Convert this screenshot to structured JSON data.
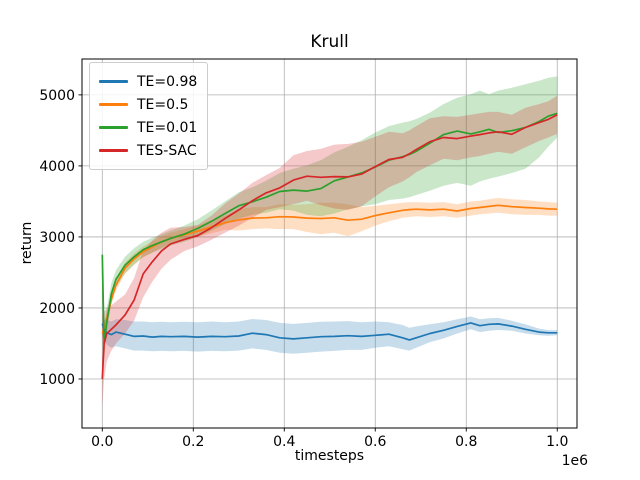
{
  "chart_data": {
    "type": "line",
    "title": "Krull",
    "xlabel": "timesteps",
    "ylabel": "return",
    "x_offset_label": "1e6",
    "x_units": "1e6 timesteps",
    "grid": true,
    "legend_position": "upper-left",
    "xlim": [
      -0.0446,
      1.0434
    ],
    "ylim": [
      310,
      5505
    ],
    "x_ticks": [
      0.0,
      0.2,
      0.4,
      0.6,
      0.8,
      1.0
    ],
    "y_ticks": [
      1000,
      2000,
      3000,
      4000,
      5000
    ],
    "frame_color": "#000000",
    "grid_color": "#b0b0b0",
    "band_alpha": 0.25,
    "x": [
      0,
      0.004,
      0.01,
      0.02,
      0.03,
      0.05,
      0.07,
      0.09,
      0.11,
      0.13,
      0.15,
      0.18,
      0.21,
      0.24,
      0.27,
      0.3,
      0.33,
      0.36,
      0.39,
      0.42,
      0.45,
      0.48,
      0.51,
      0.54,
      0.57,
      0.6,
      0.63,
      0.66,
      0.675,
      0.69,
      0.72,
      0.75,
      0.78,
      0.81,
      0.83,
      0.85,
      0.87,
      0.9,
      0.93,
      0.96,
      0.98,
      1.0
    ],
    "series": [
      {
        "name": "TE=0.98",
        "color": "#1f77b4",
        "values": [
          1780,
          1700,
          1650,
          1625,
          1660,
          1630,
          1600,
          1605,
          1590,
          1600,
          1595,
          1600,
          1590,
          1600,
          1595,
          1605,
          1645,
          1625,
          1580,
          1565,
          1580,
          1595,
          1600,
          1610,
          1600,
          1615,
          1630,
          1580,
          1550,
          1580,
          1640,
          1685,
          1740,
          1790,
          1750,
          1770,
          1775,
          1745,
          1700,
          1660,
          1650,
          1650
        ],
        "band_low": [
          1600,
          1560,
          1480,
          1440,
          1460,
          1430,
          1400,
          1400,
          1390,
          1395,
          1390,
          1395,
          1385,
          1395,
          1390,
          1400,
          1430,
          1410,
          1370,
          1355,
          1370,
          1385,
          1395,
          1410,
          1410,
          1440,
          1460,
          1420,
          1400,
          1440,
          1520,
          1570,
          1640,
          1700,
          1660,
          1680,
          1690,
          1680,
          1640,
          1615,
          1610,
          1615
        ],
        "band_high": [
          1900,
          1840,
          1830,
          1810,
          1840,
          1830,
          1810,
          1810,
          1800,
          1805,
          1800,
          1805,
          1800,
          1810,
          1800,
          1810,
          1845,
          1830,
          1790,
          1775,
          1790,
          1805,
          1810,
          1815,
          1800,
          1810,
          1800,
          1760,
          1720,
          1740,
          1770,
          1800,
          1840,
          1880,
          1840,
          1855,
          1860,
          1820,
          1770,
          1710,
          1690,
          1685
        ]
      },
      {
        "name": "TE=0.5",
        "color": "#ff7f0e",
        "values": [
          1640,
          1720,
          1850,
          2120,
          2320,
          2560,
          2690,
          2790,
          2860,
          2930,
          2980,
          3030,
          3080,
          3140,
          3200,
          3240,
          3265,
          3270,
          3285,
          3280,
          3265,
          3260,
          3270,
          3235,
          3250,
          3300,
          3340,
          3375,
          3385,
          3390,
          3380,
          3390,
          3365,
          3400,
          3415,
          3430,
          3445,
          3425,
          3415,
          3405,
          3395,
          3390
        ],
        "band_low": [
          1560,
          1650,
          1780,
          2050,
          2250,
          2480,
          2610,
          2710,
          2780,
          2850,
          2900,
          2950,
          3000,
          3050,
          3100,
          3090,
          3110,
          3120,
          3110,
          3110,
          3070,
          3040,
          3060,
          3010,
          3080,
          3160,
          3220,
          3270,
          3280,
          3290,
          3280,
          3290,
          3270,
          3300,
          3320,
          3330,
          3340,
          3320,
          3310,
          3310,
          3300,
          3300
        ],
        "band_high": [
          1720,
          1800,
          1930,
          2200,
          2400,
          2640,
          2770,
          2870,
          2940,
          3010,
          3060,
          3110,
          3160,
          3230,
          3300,
          3390,
          3420,
          3420,
          3460,
          3450,
          3460,
          3480,
          3480,
          3460,
          3420,
          3440,
          3460,
          3480,
          3490,
          3490,
          3480,
          3490,
          3460,
          3500,
          3510,
          3530,
          3550,
          3530,
          3520,
          3500,
          3490,
          3480
        ]
      },
      {
        "name": "TE=0.01",
        "color": "#2ca02c",
        "values": [
          2750,
          1500,
          1800,
          2200,
          2400,
          2600,
          2720,
          2820,
          2880,
          2930,
          2980,
          3040,
          3120,
          3220,
          3330,
          3440,
          3495,
          3560,
          3640,
          3660,
          3645,
          3680,
          3790,
          3845,
          3900,
          3985,
          4080,
          4130,
          4160,
          4205,
          4320,
          4440,
          4490,
          4450,
          4480,
          4515,
          4470,
          4495,
          4540,
          4625,
          4700,
          4740
        ],
        "band_low": [
          1450,
          1300,
          1650,
          2080,
          2290,
          2490,
          2610,
          2720,
          2780,
          2830,
          2880,
          2930,
          3000,
          3090,
          3180,
          3260,
          3310,
          3340,
          3390,
          3370,
          3310,
          3290,
          3330,
          3390,
          3430,
          3460,
          3520,
          3540,
          3560,
          3590,
          3650,
          3720,
          3760,
          3720,
          3780,
          3820,
          3850,
          3900,
          3960,
          4120,
          4270,
          4400
        ],
        "band_high": [
          2900,
          1750,
          2000,
          2350,
          2530,
          2720,
          2840,
          2930,
          2990,
          3040,
          3090,
          3160,
          3250,
          3370,
          3500,
          3630,
          3700,
          3790,
          3900,
          3960,
          4010,
          4080,
          4190,
          4270,
          4360,
          4470,
          4560,
          4610,
          4630,
          4660,
          4750,
          4870,
          4960,
          5010,
          5060,
          5010,
          5060,
          5100,
          5150,
          5200,
          5240,
          5260
        ]
      },
      {
        "name": "TES-SAC",
        "color": "#d62728",
        "values": [
          1000,
          1500,
          1640,
          1700,
          1760,
          1900,
          2110,
          2480,
          2650,
          2800,
          2900,
          2965,
          3020,
          3130,
          3260,
          3380,
          3510,
          3620,
          3690,
          3800,
          3855,
          3840,
          3850,
          3845,
          3885,
          3990,
          4090,
          4120,
          4170,
          4230,
          4340,
          4400,
          4385,
          4420,
          4440,
          4465,
          4480,
          4445,
          4540,
          4610,
          4655,
          4720
        ],
        "band_low": [
          600,
          1000,
          1250,
          1400,
          1500,
          1640,
          1820,
          2150,
          2370,
          2550,
          2680,
          2800,
          2870,
          2960,
          3060,
          3160,
          3270,
          3380,
          3420,
          3460,
          3510,
          3450,
          3400,
          3380,
          3430,
          3570,
          3700,
          3780,
          3840,
          3910,
          4010,
          4100,
          4080,
          4120,
          4140,
          4170,
          4200,
          4170,
          4260,
          4350,
          4400,
          4450
        ],
        "band_high": [
          1900,
          1950,
          2000,
          2040,
          2090,
          2190,
          2420,
          2810,
          2950,
          3060,
          3130,
          3140,
          3170,
          3300,
          3470,
          3610,
          3760,
          3870,
          3970,
          4150,
          4210,
          4240,
          4300,
          4310,
          4340,
          4410,
          4480,
          4460,
          4500,
          4560,
          4670,
          4700,
          4690,
          4720,
          4740,
          4760,
          4760,
          4720,
          4820,
          4870,
          4910,
          4990
        ]
      }
    ]
  }
}
